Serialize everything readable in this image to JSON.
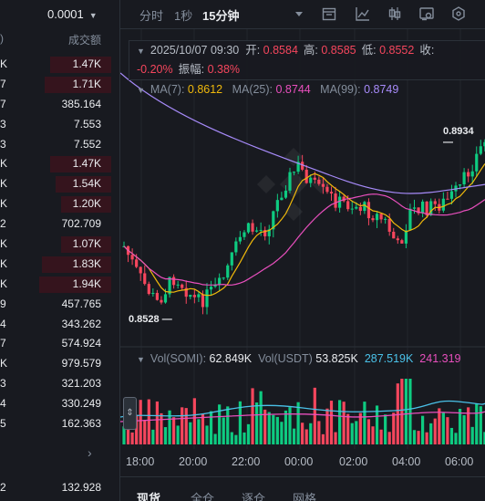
{
  "order_book": {
    "tick_size": "0.0001",
    "col_left_header": ")",
    "col_right_header": "成交额",
    "rows": [
      {
        "label": "K",
        "value": "1.47K",
        "bar": 0.55
      },
      {
        "label": "7",
        "value": "1.71K",
        "bar": 0.6
      },
      {
        "label": "7",
        "value": "385.164",
        "bar": 0
      },
      {
        "label": "3",
        "value": "7.553",
        "bar": 0
      },
      {
        "label": "3",
        "value": "7.552",
        "bar": 0
      },
      {
        "label": "K",
        "value": "1.47K",
        "bar": 0.55
      },
      {
        "label": "K",
        "value": "1.54K",
        "bar": 0.5
      },
      {
        "label": "K",
        "value": "1.20K",
        "bar": 0.45
      },
      {
        "label": "2",
        "value": "702.709",
        "bar": 0
      },
      {
        "label": "K",
        "value": "1.07K",
        "bar": 0.45
      },
      {
        "label": "K",
        "value": "1.83K",
        "bar": 0.62
      },
      {
        "label": "K",
        "value": "1.94K",
        "bar": 0.65
      },
      {
        "label": "9",
        "value": "457.765",
        "bar": 0
      },
      {
        "label": "4",
        "value": "343.262",
        "bar": 0
      },
      {
        "label": "7",
        "value": "574.924",
        "bar": 0
      },
      {
        "label": "K",
        "value": "979.579",
        "bar": 0
      },
      {
        "label": "3",
        "value": "321.203",
        "bar": 0
      },
      {
        "label": "4",
        "value": "330.249",
        "bar": 0
      },
      {
        "label": "5",
        "value": "162.363",
        "bar": 0
      }
    ],
    "more_arrow": "›",
    "last_row": {
      "label": "2",
      "value": "132.928"
    }
  },
  "toolbar": {
    "intervals": [
      "分时",
      "1秒",
      "15分钟"
    ],
    "active_interval": "15分钟",
    "icons": [
      "dropdown-caret-icon",
      "calendar-icon",
      "line-chart-icon",
      "candlestick-icon",
      "indicator-settings-icon",
      "settings-hex-icon"
    ]
  },
  "ohlc": {
    "datetime": "2025/10/07 09:30",
    "open_label": "开:",
    "open": "0.8584",
    "high_label": "高:",
    "high": "0.8585",
    "low_label": "低:",
    "low": "0.8552",
    "close_label": "收:",
    "change": "-0.20%",
    "amp_label": "振幅:",
    "amplitude": "0.38%"
  },
  "ma": {
    "ma7_label": "MA(7):",
    "ma7": "0.8612",
    "ma25_label": "MA(25):",
    "ma25": "0.8744",
    "ma99_label": "MA(99):",
    "ma99": "0.8749",
    "colors": {
      "ma7": "#f0b90b",
      "ma25": "#e84fbd",
      "ma99": "#a78bfa"
    }
  },
  "volume": {
    "somi_label": "Vol(SOMI):",
    "somi": "62.849K",
    "usdt_label": "Vol(USDT)",
    "usdt": "53.825K",
    "ma5": "287.519K",
    "ma10": "241.319"
  },
  "price_labels": {
    "high": "0.8934",
    "low": "0.8528"
  },
  "xaxis": [
    "18:00",
    "20:00",
    "22:00",
    "00:00",
    "02:00",
    "04:00",
    "06:00"
  ],
  "bottom_tabs": [
    "现货",
    "全仓",
    "逐仓",
    "网格"
  ],
  "colors": {
    "up": "#0ecb81",
    "down": "#f6465d",
    "bg": "#181a20"
  }
}
